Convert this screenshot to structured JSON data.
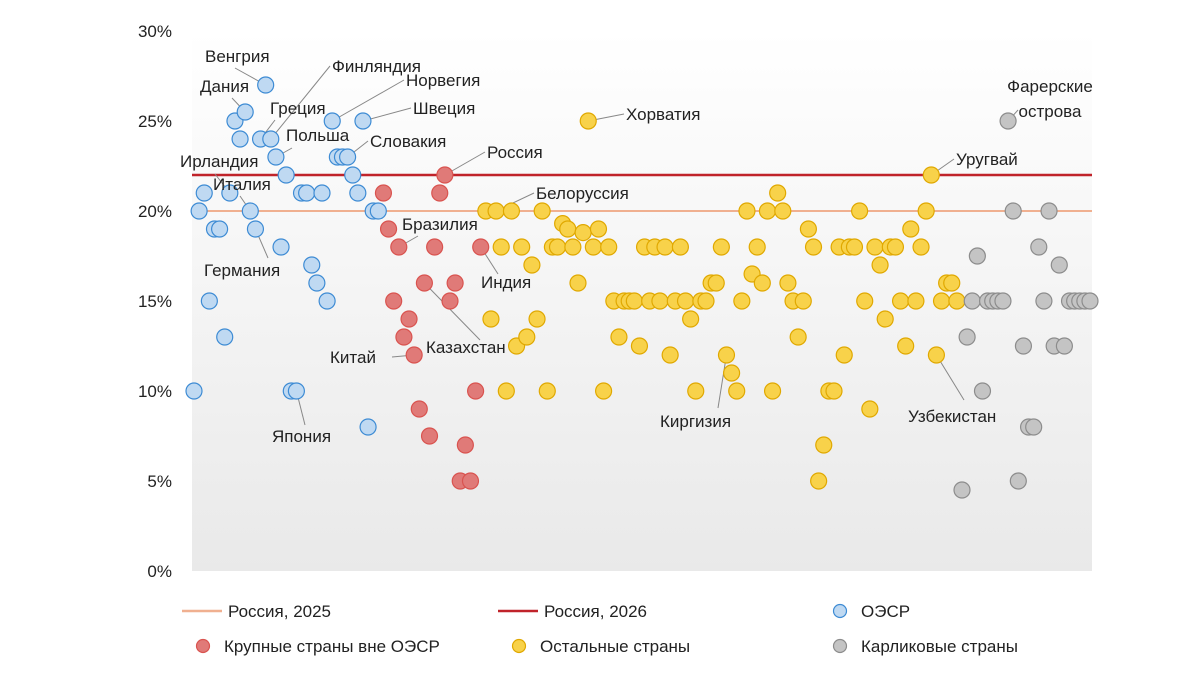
{
  "chart_data": {
    "type": "scatter",
    "title": "",
    "xlabel": "",
    "ylabel": "",
    "ylim": [
      0,
      30
    ],
    "yticks": [
      "0%",
      "5%",
      "10%",
      "15%",
      "20%",
      "25%",
      "30%"
    ],
    "grid": false,
    "reference_lines": [
      {
        "name": "Россия, 2025",
        "value": 20,
        "color": "#f0b090"
      },
      {
        "name": "Россия, 2026",
        "value": 22,
        "color": "#c0232a"
      }
    ],
    "series": [
      {
        "name": "ОЭСР",
        "color": "#3d8bd4",
        "fill_light": "#bfd9f2",
        "points": [
          {
            "x": 1,
            "y": 10
          },
          {
            "x": 2,
            "y": 20
          },
          {
            "x": 3,
            "y": 21
          },
          {
            "x": 4,
            "y": 15
          },
          {
            "x": 5,
            "y": 19
          },
          {
            "x": 6,
            "y": 19
          },
          {
            "x": 7,
            "y": 13
          },
          {
            "x": 8,
            "y": 21
          },
          {
            "x": 9,
            "y": 25
          },
          {
            "x": 10,
            "y": 24
          },
          {
            "x": 11,
            "y": 25.5
          },
          {
            "x": 12,
            "y": 20
          },
          {
            "x": 13,
            "y": 19
          },
          {
            "x": 14,
            "y": 24
          },
          {
            "x": 15,
            "y": 27
          },
          {
            "x": 16,
            "y": 24
          },
          {
            "x": 17,
            "y": 23
          },
          {
            "x": 18,
            "y": 18
          },
          {
            "x": 19,
            "y": 22
          },
          {
            "x": 20,
            "y": 10
          },
          {
            "x": 21,
            "y": 10
          },
          {
            "x": 22,
            "y": 21
          },
          {
            "x": 23,
            "y": 21
          },
          {
            "x": 24,
            "y": 17
          },
          {
            "x": 25,
            "y": 16
          },
          {
            "x": 26,
            "y": 21
          },
          {
            "x": 27,
            "y": 15
          },
          {
            "x": 28,
            "y": 25
          },
          {
            "x": 29,
            "y": 23
          },
          {
            "x": 30,
            "y": 23
          },
          {
            "x": 31,
            "y": 23
          },
          {
            "x": 32,
            "y": 22
          },
          {
            "x": 33,
            "y": 21
          },
          {
            "x": 34,
            "y": 25
          },
          {
            "x": 35,
            "y": 8
          },
          {
            "x": 36,
            "y": 20
          },
          {
            "x": 37,
            "y": 20
          }
        ]
      },
      {
        "name": "Крупные страны вне ОЭСР",
        "color": "#d9534f",
        "fill_light": "#e07a78",
        "points": [
          {
            "x": 38,
            "y": 21
          },
          {
            "x": 39,
            "y": 19
          },
          {
            "x": 40,
            "y": 15
          },
          {
            "x": 41,
            "y": 18
          },
          {
            "x": 42,
            "y": 13
          },
          {
            "x": 43,
            "y": 14
          },
          {
            "x": 44,
            "y": 12
          },
          {
            "x": 45,
            "y": 9
          },
          {
            "x": 46,
            "y": 16
          },
          {
            "x": 47,
            "y": 7.5
          },
          {
            "x": 48,
            "y": 18
          },
          {
            "x": 49,
            "y": 21
          },
          {
            "x": 50,
            "y": 22
          },
          {
            "x": 51,
            "y": 15
          },
          {
            "x": 52,
            "y": 16
          },
          {
            "x": 53,
            "y": 5
          },
          {
            "x": 54,
            "y": 7
          },
          {
            "x": 55,
            "y": 5
          },
          {
            "x": 56,
            "y": 10
          },
          {
            "x": 57,
            "y": 18
          }
        ]
      },
      {
        "name": "Остальные страны",
        "color": "#e0a800",
        "fill_light": "#f8d24a",
        "points": [
          {
            "x": 58,
            "y": 20
          },
          {
            "x": 59,
            "y": 14
          },
          {
            "x": 60,
            "y": 20
          },
          {
            "x": 61,
            "y": 18
          },
          {
            "x": 62,
            "y": 10
          },
          {
            "x": 63,
            "y": 20
          },
          {
            "x": 64,
            "y": 12.5
          },
          {
            "x": 65,
            "y": 18
          },
          {
            "x": 66,
            "y": 13
          },
          {
            "x": 67,
            "y": 17
          },
          {
            "x": 68,
            "y": 14
          },
          {
            "x": 69,
            "y": 20
          },
          {
            "x": 70,
            "y": 10
          },
          {
            "x": 71,
            "y": 18
          },
          {
            "x": 72,
            "y": 18
          },
          {
            "x": 73,
            "y": 19.3
          },
          {
            "x": 74,
            "y": 19
          },
          {
            "x": 75,
            "y": 18
          },
          {
            "x": 76,
            "y": 16
          },
          {
            "x": 77,
            "y": 18.8
          },
          {
            "x": 78,
            "y": 25
          },
          {
            "x": 79,
            "y": 18
          },
          {
            "x": 80,
            "y": 19
          },
          {
            "x": 81,
            "y": 10
          },
          {
            "x": 82,
            "y": 18
          },
          {
            "x": 83,
            "y": 15
          },
          {
            "x": 84,
            "y": 13
          },
          {
            "x": 85,
            "y": 15
          },
          {
            "x": 86,
            "y": 15
          },
          {
            "x": 87,
            "y": 15
          },
          {
            "x": 88,
            "y": 12.5
          },
          {
            "x": 89,
            "y": 18
          },
          {
            "x": 90,
            "y": 15
          },
          {
            "x": 91,
            "y": 18
          },
          {
            "x": 92,
            "y": 15
          },
          {
            "x": 93,
            "y": 18
          },
          {
            "x": 94,
            "y": 12
          },
          {
            "x": 95,
            "y": 15
          },
          {
            "x": 96,
            "y": 18
          },
          {
            "x": 97,
            "y": 15
          },
          {
            "x": 98,
            "y": 14
          },
          {
            "x": 99,
            "y": 10
          },
          {
            "x": 100,
            "y": 15
          },
          {
            "x": 101,
            "y": 15
          },
          {
            "x": 102,
            "y": 16
          },
          {
            "x": 103,
            "y": 16
          },
          {
            "x": 104,
            "y": 18
          },
          {
            "x": 105,
            "y": 12
          },
          {
            "x": 106,
            "y": 11
          },
          {
            "x": 107,
            "y": 10
          },
          {
            "x": 108,
            "y": 15
          },
          {
            "x": 109,
            "y": 20
          },
          {
            "x": 110,
            "y": 16.5
          },
          {
            "x": 111,
            "y": 18
          },
          {
            "x": 112,
            "y": 16
          },
          {
            "x": 113,
            "y": 20
          },
          {
            "x": 114,
            "y": 10
          },
          {
            "x": 115,
            "y": 21
          },
          {
            "x": 116,
            "y": 20
          },
          {
            "x": 117,
            "y": 16
          },
          {
            "x": 118,
            "y": 15
          },
          {
            "x": 119,
            "y": 13
          },
          {
            "x": 120,
            "y": 15
          },
          {
            "x": 121,
            "y": 19
          },
          {
            "x": 122,
            "y": 18
          },
          {
            "x": 123,
            "y": 5
          },
          {
            "x": 124,
            "y": 7
          },
          {
            "x": 125,
            "y": 10
          },
          {
            "x": 126,
            "y": 10
          },
          {
            "x": 127,
            "y": 18
          },
          {
            "x": 128,
            "y": 12
          },
          {
            "x": 129,
            "y": 18
          },
          {
            "x": 130,
            "y": 18
          },
          {
            "x": 131,
            "y": 20
          },
          {
            "x": 132,
            "y": 15
          },
          {
            "x": 133,
            "y": 9
          },
          {
            "x": 134,
            "y": 18
          },
          {
            "x": 135,
            "y": 17
          },
          {
            "x": 136,
            "y": 14
          },
          {
            "x": 137,
            "y": 18
          },
          {
            "x": 138,
            "y": 18
          },
          {
            "x": 139,
            "y": 15
          },
          {
            "x": 140,
            "y": 12.5
          },
          {
            "x": 141,
            "y": 19
          },
          {
            "x": 142,
            "y": 15
          },
          {
            "x": 143,
            "y": 18
          },
          {
            "x": 144,
            "y": 20
          },
          {
            "x": 145,
            "y": 22
          },
          {
            "x": 146,
            "y": 12
          },
          {
            "x": 147,
            "y": 15
          },
          {
            "x": 148,
            "y": 16
          },
          {
            "x": 149,
            "y": 16
          },
          {
            "x": 150,
            "y": 15
          }
        ]
      },
      {
        "name": "Карликовые страны",
        "color": "#8c8c8c",
        "fill_light": "#c4c4c4",
        "points": [
          {
            "x": 151,
            "y": 4.5
          },
          {
            "x": 152,
            "y": 13
          },
          {
            "x": 153,
            "y": 15
          },
          {
            "x": 154,
            "y": 17.5
          },
          {
            "x": 155,
            "y": 10
          },
          {
            "x": 156,
            "y": 15
          },
          {
            "x": 157,
            "y": 15
          },
          {
            "x": 158,
            "y": 15
          },
          {
            "x": 159,
            "y": 15
          },
          {
            "x": 160,
            "y": 25
          },
          {
            "x": 161,
            "y": 20
          },
          {
            "x": 162,
            "y": 5
          },
          {
            "x": 163,
            "y": 12.5
          },
          {
            "x": 164,
            "y": 8
          },
          {
            "x": 165,
            "y": 8
          },
          {
            "x": 166,
            "y": 18
          },
          {
            "x": 167,
            "y": 15
          },
          {
            "x": 168,
            "y": 20
          },
          {
            "x": 169,
            "y": 12.5
          },
          {
            "x": 170,
            "y": 17
          },
          {
            "x": 171,
            "y": 12.5
          },
          {
            "x": 172,
            "y": 15
          },
          {
            "x": 173,
            "y": 15
          },
          {
            "x": 174,
            "y": 15
          },
          {
            "x": 175,
            "y": 15
          },
          {
            "x": 176,
            "y": 15
          }
        ]
      }
    ],
    "annotations": [
      {
        "text": "Венгрия",
        "point_x": 15,
        "point_y": 27
      },
      {
        "text": "Дания",
        "point_x": 11,
        "point_y": 25.5
      },
      {
        "text": "Финляндия",
        "point_x": 16,
        "point_y": 24
      },
      {
        "text": "Греция",
        "point_x": 14,
        "point_y": 24
      },
      {
        "text": "Норвегия",
        "point_x": 28,
        "point_y": 25
      },
      {
        "text": "Швеция",
        "point_x": 34,
        "point_y": 25
      },
      {
        "text": "Польша",
        "point_x": 17,
        "point_y": 23
      },
      {
        "text": "Словакия",
        "point_x": 31,
        "point_y": 23
      },
      {
        "text": "Ирландия",
        "point_x": 8,
        "point_y": 21
      },
      {
        "text": "Италия",
        "point_x": 12,
        "point_y": 20
      },
      {
        "text": "Россия",
        "point_x": 50,
        "point_y": 22
      },
      {
        "text": "Хорватия",
        "point_x": 78,
        "point_y": 25
      },
      {
        "text": "Белоруссия",
        "point_x": 60,
        "point_y": 20
      },
      {
        "text": "Бразилия",
        "point_x": 41,
        "point_y": 18
      },
      {
        "text": "Германия",
        "point_x": 13,
        "point_y": 19
      },
      {
        "text": "Индия",
        "point_x": 57,
        "point_y": 18
      },
      {
        "text": "Казахстан",
        "point_x": 46,
        "point_y": 16
      },
      {
        "text": "Китай",
        "point_x": 44,
        "point_y": 12
      },
      {
        "text": "Япония",
        "point_x": 21,
        "point_y": 10
      },
      {
        "text": "Киргизия",
        "point_x": 105,
        "point_y": 12
      },
      {
        "text": "Фарерские острова",
        "point_x": 160,
        "point_y": 25
      },
      {
        "text": "Уругвай",
        "point_x": 145,
        "point_y": 22
      },
      {
        "text": "Узбекистан",
        "point_x": 146,
        "point_y": 12
      }
    ],
    "legend": {
      "placement": "bottom",
      "items": [
        {
          "label": "Россия, 2025",
          "kind": "line",
          "color": "#f0b090"
        },
        {
          "label": "Россия, 2026",
          "kind": "line",
          "color": "#c0232a"
        },
        {
          "label": "ОЭСР",
          "kind": "marker",
          "color": "#3d8bd4",
          "fill": "#bfd9f2"
        },
        {
          "label": "Крупные страны вне ОЭСР",
          "kind": "marker",
          "color": "#d9534f",
          "fill": "#e07a78"
        },
        {
          "label": "Остальные страны",
          "kind": "marker",
          "color": "#e0a800",
          "fill": "#f8d24a"
        },
        {
          "label": "Карликовые страны",
          "kind": "marker",
          "color": "#8c8c8c",
          "fill": "#c4c4c4"
        }
      ]
    }
  }
}
